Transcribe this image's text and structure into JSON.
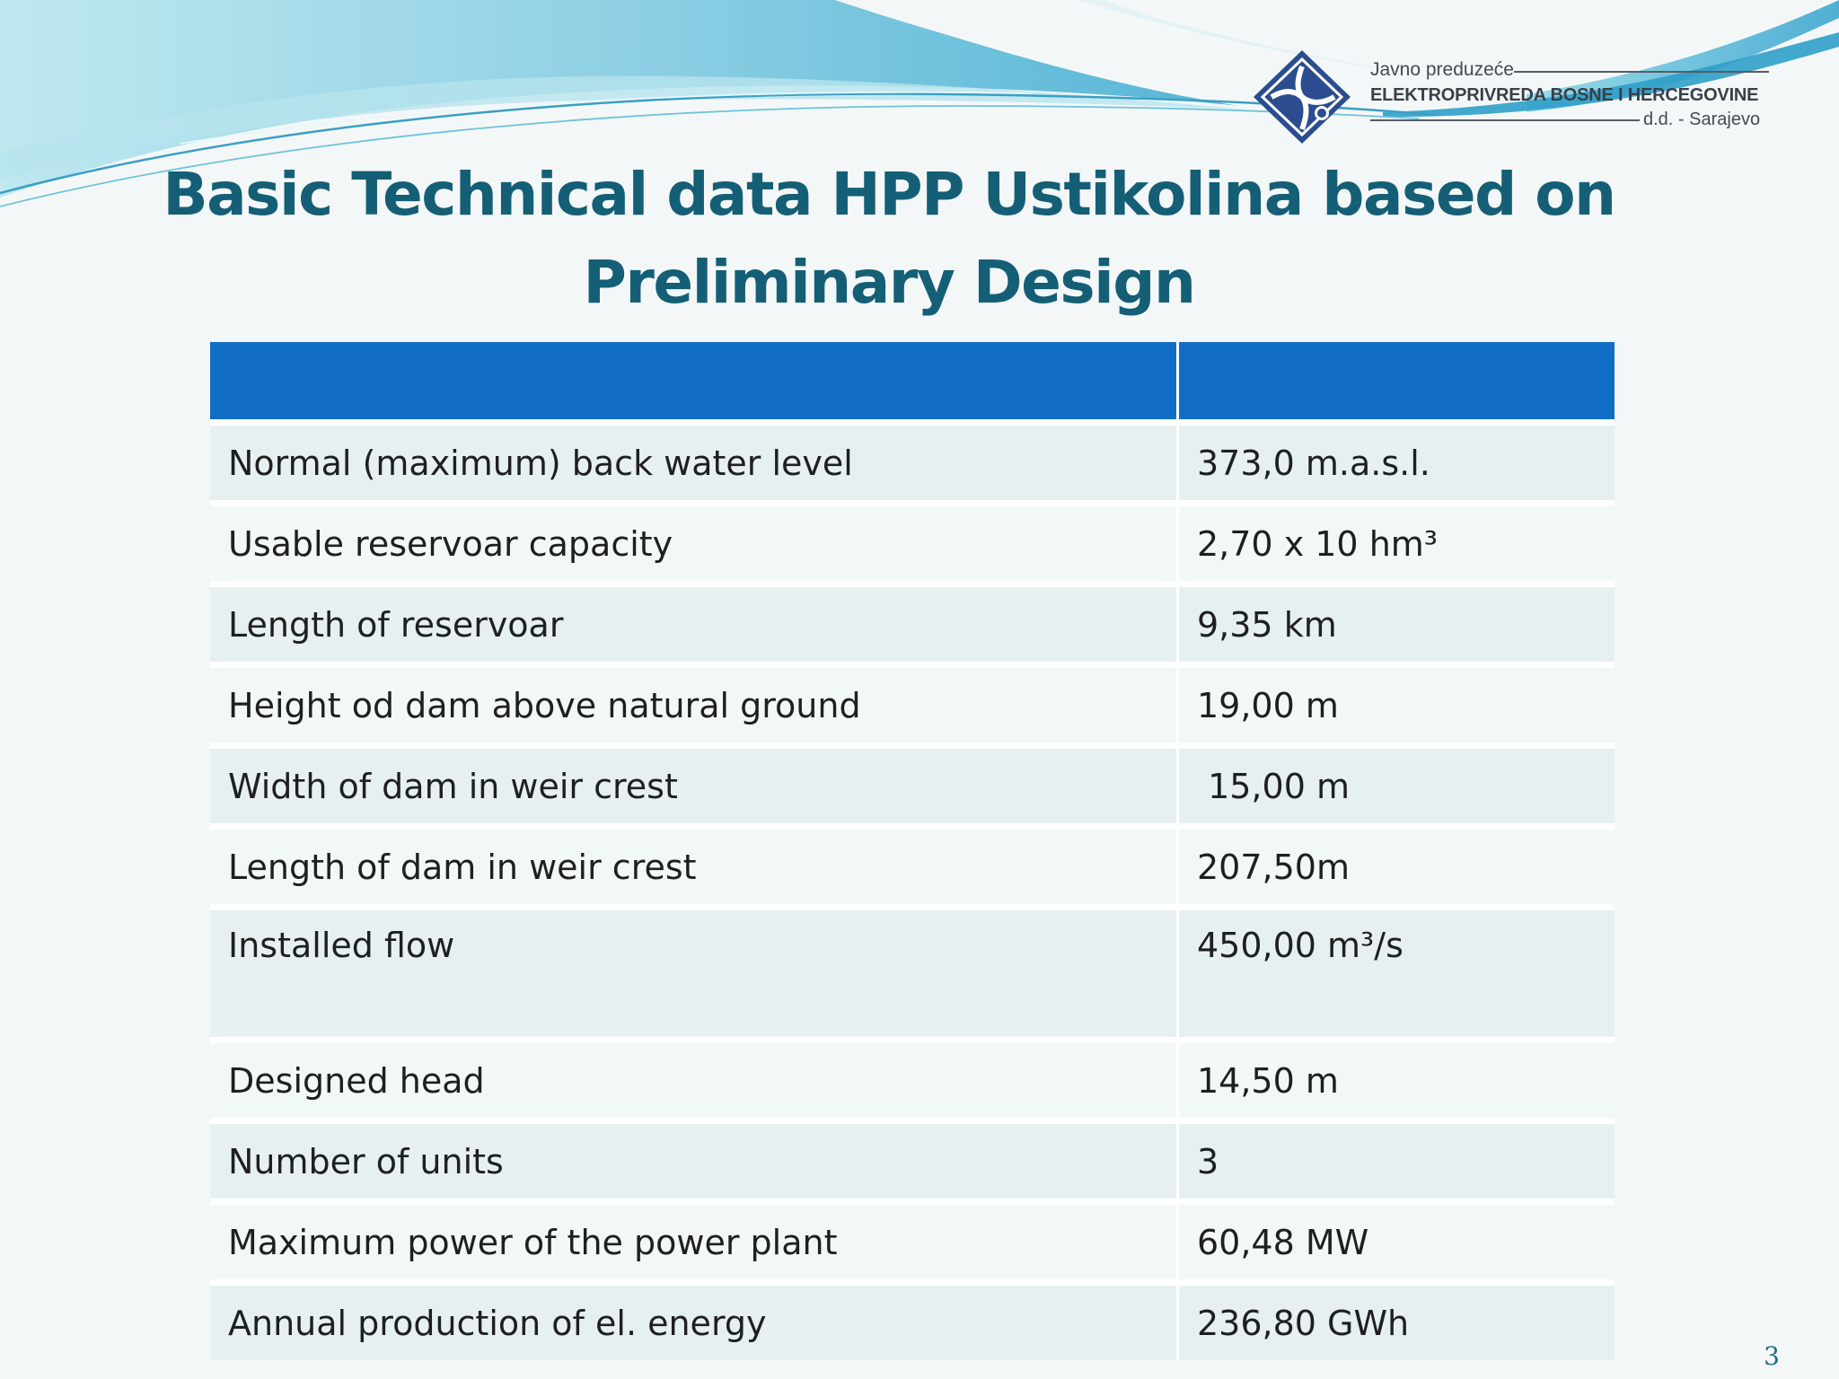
{
  "logo": {
    "line1": "Javno preduzeće",
    "line2": "ELEKTROPRIVREDA BOSNE I HERCEGOVINE",
    "line3": "d.d. - Sarajevo"
  },
  "slide": {
    "title": "Basic Technical data HPP Ustikolina based on Preliminary Design",
    "page_number": "3"
  },
  "table": {
    "header": [
      "",
      ""
    ],
    "rows": [
      {
        "parameter": "Normal (maximum) back water level",
        "value": "373,0 m.a.s.l."
      },
      {
        "parameter": "Usable reservoar capacity",
        "value": "2,70 x 10 hm³"
      },
      {
        "parameter": "Length of reservoar",
        "value": "9,35 km"
      },
      {
        "parameter": "Height od dam above natural ground",
        "value": "19,00 m"
      },
      {
        "parameter": "Width of dam in weir crest",
        "value": " 15,00 m"
      },
      {
        "parameter": "Length of dam in weir crest",
        "value": "207,50m"
      },
      {
        "parameter": "Installed flow",
        "value": "450,00 m³/s"
      },
      {
        "parameter": "Designed head",
        "value": "14,50 m"
      },
      {
        "parameter": "Number of units",
        "value": "3"
      },
      {
        "parameter": "Maximum power of the power plant",
        "value": "60,48 MW"
      },
      {
        "parameter": "Annual production of el. energy",
        "value": "236,80 GWh"
      }
    ]
  },
  "colors": {
    "title": "#145f75",
    "table_header": "#126dc6",
    "row_odd": "#e7f0f1",
    "row_even": "#f2f8f8",
    "wave_light": "#9fd8e6",
    "wave_dark": "#4fb7d3"
  }
}
